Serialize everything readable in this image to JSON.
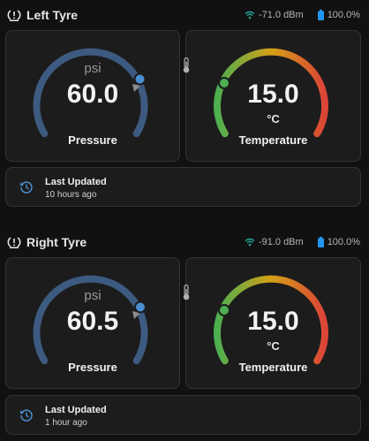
{
  "sections": [
    {
      "title": "Left Tyre",
      "signal": "-71.0 dBm",
      "battery": "100.0%",
      "pressure": {
        "unit": "psi",
        "value": "60.0",
        "label": "Pressure",
        "level": 0.67
      },
      "temperature": {
        "unit": "°C",
        "value": "15.0",
        "label": "Temperature",
        "level": 0.22
      },
      "updated": {
        "title": "Last Updated",
        "time": "10 hours ago"
      }
    },
    {
      "title": "Right Tyre",
      "signal": "-91.0 dBm",
      "battery": "100.0%",
      "pressure": {
        "unit": "psi",
        "value": "60.5",
        "label": "Pressure",
        "level": 0.68
      },
      "temperature": {
        "unit": "°C",
        "value": "15.0",
        "label": "Temperature",
        "level": 0.22
      },
      "updated": {
        "title": "Last Updated",
        "time": "1 hour ago"
      }
    }
  ],
  "icons": [
    "tyre-icon",
    "wifi-icon",
    "battery-icon",
    "thermometer-icon",
    "history-icon"
  ],
  "colors": {
    "background": "#111111",
    "card": "#1c1c1c",
    "pressure_arc": "#3d5a80",
    "marker": "#4a8fd0",
    "signal": "#26a69a",
    "battery": "#2196f3",
    "temp_low": "#4caf50",
    "temp_mid": "#d4a017",
    "temp_high": "#db4437"
  }
}
